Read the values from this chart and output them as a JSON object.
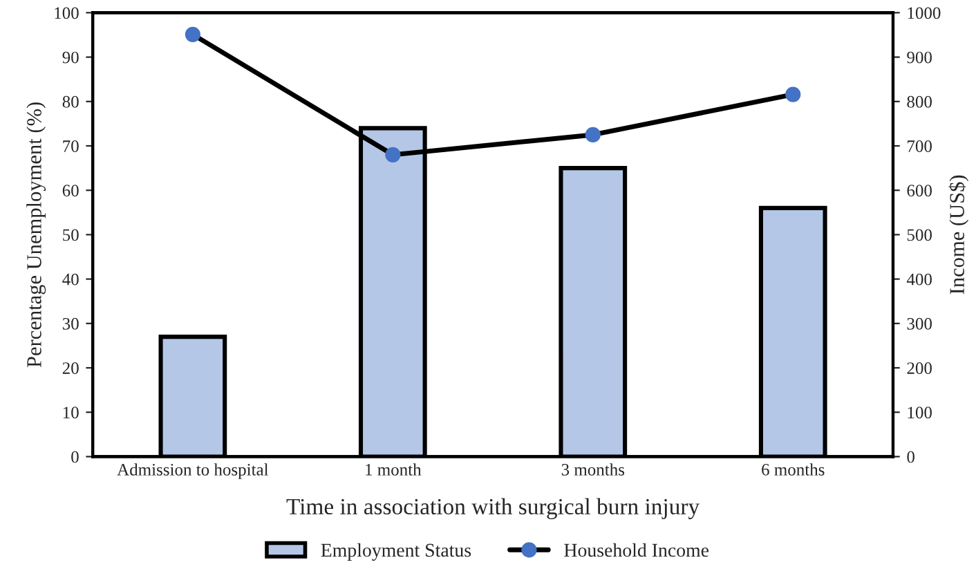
{
  "chart_data": {
    "type": "bar",
    "xlabel": "Time in association with surgical burn injury",
    "ylabel": "Percentage Unemployment (%)",
    "y2label": "Income (US$)",
    "categories": [
      "Admission to hospital",
      "1 month",
      "3 months",
      "6 months"
    ],
    "series": [
      {
        "name": "Employment Status",
        "color": "#b4c7e7",
        "values": [
          27,
          74,
          65,
          56
        ]
      },
      {
        "name": "Household Income",
        "type": "line",
        "axis": "y2",
        "color": "#000000",
        "marker": "circle",
        "values": [
          951,
          680,
          725,
          816
        ]
      }
    ],
    "ylim": [
      0,
      100
    ],
    "yticks": [
      0,
      10,
      20,
      30,
      40,
      50,
      60,
      70,
      80,
      90,
      100
    ],
    "y2lim": [
      0,
      1000
    ],
    "y2ticks": [
      0,
      100,
      200,
      300,
      400,
      500,
      600,
      700,
      800,
      900,
      1000
    ],
    "grid": false,
    "legend": "bottom"
  }
}
